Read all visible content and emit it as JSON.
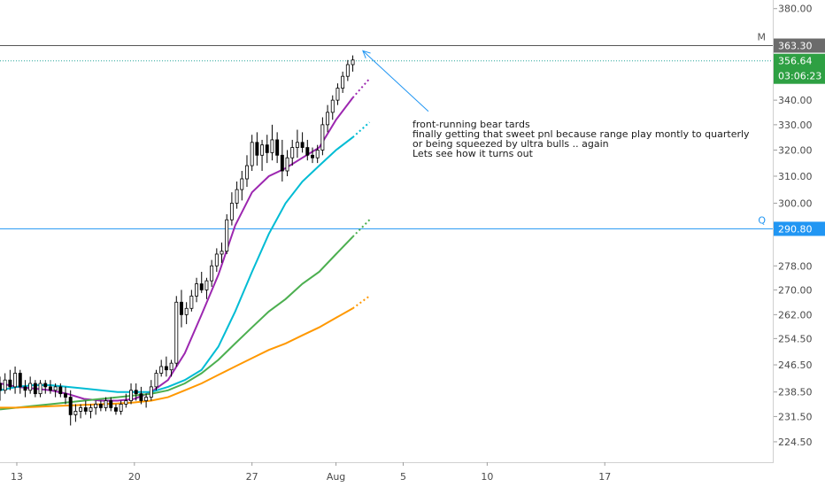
{
  "chart_data": {
    "type": "candlestick",
    "y_scale": "log",
    "ylim": [
      219,
      384
    ],
    "xlim": [
      12,
      58
    ],
    "price_ticks": [
      "380.00",
      "340.00",
      "330.00",
      "320.00",
      "310.00",
      "300.00",
      "278.00",
      "270.00",
      "262.00",
      "254.50",
      "246.50",
      "238.50",
      "231.50",
      "224.50"
    ],
    "date_ticks": [
      {
        "x": 13,
        "label": "13"
      },
      {
        "x": 20,
        "label": "20"
      },
      {
        "x": 27,
        "label": "27"
      },
      {
        "x": 32,
        "label": "Aug"
      },
      {
        "x": 36,
        "label": "5"
      },
      {
        "x": 41,
        "label": "10"
      },
      {
        "x": 48,
        "label": "17"
      }
    ],
    "grid": false,
    "horizontal_lines": [
      {
        "value": 363.3,
        "label": "M",
        "price_label": "363.30",
        "color": "#555555",
        "badge_color": "#6b6b6b"
      },
      {
        "value": 290.8,
        "label": "Q",
        "price_label": "290.80",
        "color": "#2196f3",
        "badge_color": "#2196f3"
      }
    ],
    "current_price": {
      "value": 356.64,
      "label": "356.64",
      "countdown": "03:06:23",
      "color": "#26a69a",
      "badge_color": "#2ea043"
    },
    "candles": [
      [
        12,
        241,
        243,
        236,
        239
      ],
      [
        12.3,
        239,
        244,
        238,
        242
      ],
      [
        12.6,
        242,
        245,
        239,
        240
      ],
      [
        12.9,
        240,
        246,
        238,
        244
      ],
      [
        13.2,
        244,
        245,
        238,
        240
      ],
      [
        13.5,
        240,
        242,
        237,
        239
      ],
      [
        13.8,
        239,
        243,
        238,
        241
      ],
      [
        14.1,
        241,
        242,
        237,
        238
      ],
      [
        14.4,
        238,
        242,
        237,
        241
      ],
      [
        14.7,
        241,
        242,
        238,
        240
      ],
      [
        15,
        240,
        242,
        238,
        239
      ],
      [
        15.3,
        239,
        241,
        237,
        240
      ],
      [
        15.6,
        240,
        241,
        237,
        238
      ],
      [
        15.9,
        238,
        240,
        235,
        237
      ],
      [
        16.2,
        237,
        239,
        229,
        232
      ],
      [
        16.5,
        232,
        235,
        230,
        233
      ],
      [
        16.8,
        233,
        235,
        231,
        234
      ],
      [
        17.1,
        234,
        236,
        232,
        233
      ],
      [
        17.4,
        233,
        235,
        231,
        234
      ],
      [
        17.7,
        234,
        236,
        232,
        235
      ],
      [
        18,
        235,
        236,
        233,
        234
      ],
      [
        18.3,
        234,
        237,
        233,
        236
      ],
      [
        18.6,
        236,
        237,
        233,
        234
      ],
      [
        18.9,
        234,
        235,
        232,
        233
      ],
      [
        19.2,
        233,
        236,
        232,
        235
      ],
      [
        19.5,
        235,
        238,
        234,
        236
      ],
      [
        19.8,
        236,
        241,
        235,
        239
      ],
      [
        20.1,
        239,
        241,
        236,
        238
      ],
      [
        20.4,
        238,
        240,
        235,
        236
      ],
      [
        20.7,
        236,
        238,
        234,
        237
      ],
      [
        21,
        237,
        242,
        236,
        240
      ],
      [
        21.3,
        240,
        245,
        239,
        244
      ],
      [
        21.6,
        244,
        248,
        243,
        246
      ],
      [
        21.9,
        246,
        249,
        243,
        245
      ],
      [
        22.2,
        245,
        248,
        243,
        247
      ],
      [
        22.5,
        247,
        268,
        246,
        266
      ],
      [
        22.8,
        266,
        270,
        258,
        262
      ],
      [
        23.1,
        262,
        266,
        259,
        264
      ],
      [
        23.4,
        264,
        270,
        263,
        268
      ],
      [
        23.7,
        268,
        274,
        266,
        272
      ],
      [
        24,
        272,
        276,
        269,
        270
      ],
      [
        24.3,
        270,
        274,
        267,
        273
      ],
      [
        24.6,
        273,
        280,
        271,
        278
      ],
      [
        24.9,
        278,
        284,
        276,
        282
      ],
      [
        25.2,
        282,
        286,
        279,
        283
      ],
      [
        25.5,
        283,
        296,
        282,
        294
      ],
      [
        25.8,
        294,
        304,
        292,
        300
      ],
      [
        26.1,
        300,
        308,
        298,
        305
      ],
      [
        26.4,
        305,
        312,
        301,
        309
      ],
      [
        26.7,
        309,
        318,
        306,
        314
      ],
      [
        27,
        314,
        326,
        312,
        323
      ],
      [
        27.3,
        323,
        327,
        314,
        318
      ],
      [
        27.6,
        318,
        324,
        312,
        322
      ],
      [
        27.9,
        322,
        326,
        315,
        319
      ],
      [
        28.2,
        319,
        330,
        316,
        324
      ],
      [
        28.5,
        324,
        327,
        315,
        318
      ],
      [
        28.8,
        318,
        324,
        308,
        312
      ],
      [
        29.1,
        312,
        320,
        310,
        317
      ],
      [
        29.4,
        317,
        324,
        314,
        321
      ],
      [
        29.7,
        321,
        328,
        317,
        323
      ],
      [
        30,
        323,
        327,
        319,
        321
      ],
      [
        30.3,
        321,
        324,
        316,
        318
      ],
      [
        30.6,
        318,
        321,
        315,
        317
      ],
      [
        30.9,
        317,
        322,
        315,
        320
      ],
      [
        31.2,
        320,
        333,
        318,
        330
      ],
      [
        31.5,
        330,
        338,
        327,
        335
      ],
      [
        31.8,
        335,
        342,
        332,
        340
      ],
      [
        32.1,
        340,
        347,
        338,
        345
      ],
      [
        32.4,
        345,
        352,
        343,
        350
      ],
      [
        32.7,
        350,
        357,
        348,
        355
      ],
      [
        33,
        355,
        359,
        352,
        357
      ]
    ],
    "series": [
      {
        "color": "#9c27b0",
        "values": [
          [
            12,
            241
          ],
          [
            13,
            240
          ],
          [
            14,
            239.5
          ],
          [
            15,
            239
          ],
          [
            16,
            238
          ],
          [
            17,
            236.5
          ],
          [
            18,
            236
          ],
          [
            19,
            236
          ],
          [
            20,
            236.5
          ],
          [
            21,
            238.5
          ],
          [
            22,
            242
          ],
          [
            23,
            250
          ],
          [
            24,
            262
          ],
          [
            25,
            275
          ],
          [
            26,
            292
          ],
          [
            27,
            304
          ],
          [
            28,
            310
          ],
          [
            29,
            313
          ],
          [
            30,
            317
          ],
          [
            31,
            321
          ],
          [
            32,
            332
          ],
          [
            33,
            341
          ]
        ],
        "forecast": [
          [
            33,
            341
          ],
          [
            34,
            349
          ]
        ]
      },
      {
        "color": "#00bcd4",
        "values": [
          [
            12,
            239
          ],
          [
            13,
            240
          ],
          [
            14,
            240.5
          ],
          [
            15,
            240.5
          ],
          [
            16,
            240
          ],
          [
            17,
            239.5
          ],
          [
            18,
            239
          ],
          [
            19,
            238.5
          ],
          [
            20,
            238.5
          ],
          [
            21,
            238.5
          ],
          [
            22,
            240
          ],
          [
            23,
            242
          ],
          [
            24,
            245
          ],
          [
            25,
            252
          ],
          [
            26,
            263
          ],
          [
            27,
            276
          ],
          [
            28,
            289
          ],
          [
            29,
            300
          ],
          [
            30,
            308
          ],
          [
            31,
            314
          ],
          [
            32,
            320
          ],
          [
            33,
            325
          ]
        ],
        "forecast": [
          [
            33,
            325
          ],
          [
            34,
            331
          ]
        ]
      },
      {
        "color": "#4caf50",
        "values": [
          [
            12,
            233.5
          ],
          [
            13,
            234
          ],
          [
            14,
            234.5
          ],
          [
            15,
            235
          ],
          [
            16,
            235.5
          ],
          [
            17,
            236
          ],
          [
            18,
            236.5
          ],
          [
            19,
            237
          ],
          [
            20,
            237.5
          ],
          [
            21,
            238
          ],
          [
            22,
            239
          ],
          [
            23,
            241
          ],
          [
            24,
            244
          ],
          [
            25,
            248
          ],
          [
            26,
            253
          ],
          [
            27,
            258
          ],
          [
            28,
            263
          ],
          [
            29,
            267
          ],
          [
            30,
            272
          ],
          [
            31,
            276
          ],
          [
            32,
            282
          ],
          [
            33,
            288
          ]
        ],
        "forecast": [
          [
            33,
            288
          ],
          [
            34,
            294
          ]
        ]
      },
      {
        "color": "#ff9800",
        "values": [
          [
            12,
            234
          ],
          [
            13,
            234
          ],
          [
            14,
            234.2
          ],
          [
            15,
            234.4
          ],
          [
            16,
            234.6
          ],
          [
            17,
            234.8
          ],
          [
            18,
            235
          ],
          [
            19,
            235.2
          ],
          [
            20,
            235.5
          ],
          [
            21,
            236
          ],
          [
            22,
            237
          ],
          [
            23,
            239
          ],
          [
            24,
            241
          ],
          [
            25,
            243.5
          ],
          [
            26,
            246
          ],
          [
            27,
            248.5
          ],
          [
            28,
            251
          ],
          [
            29,
            253
          ],
          [
            30,
            255.5
          ],
          [
            31,
            258
          ],
          [
            32,
            261
          ],
          [
            33,
            264
          ]
        ],
        "forecast": [
          [
            33,
            264
          ],
          [
            34,
            268
          ]
        ]
      }
    ],
    "annotations": [
      {
        "lines": [
          "front-running bear tards",
          "finally getting that sweet pnl because range play montly to quarterly",
          "or being squeezed by ultra bulls .. again",
          "Lets see how it turns out"
        ],
        "arrow_from": [
          37.5,
          335.4
        ],
        "arrow_to": [
          33.6,
          361
        ]
      }
    ]
  }
}
